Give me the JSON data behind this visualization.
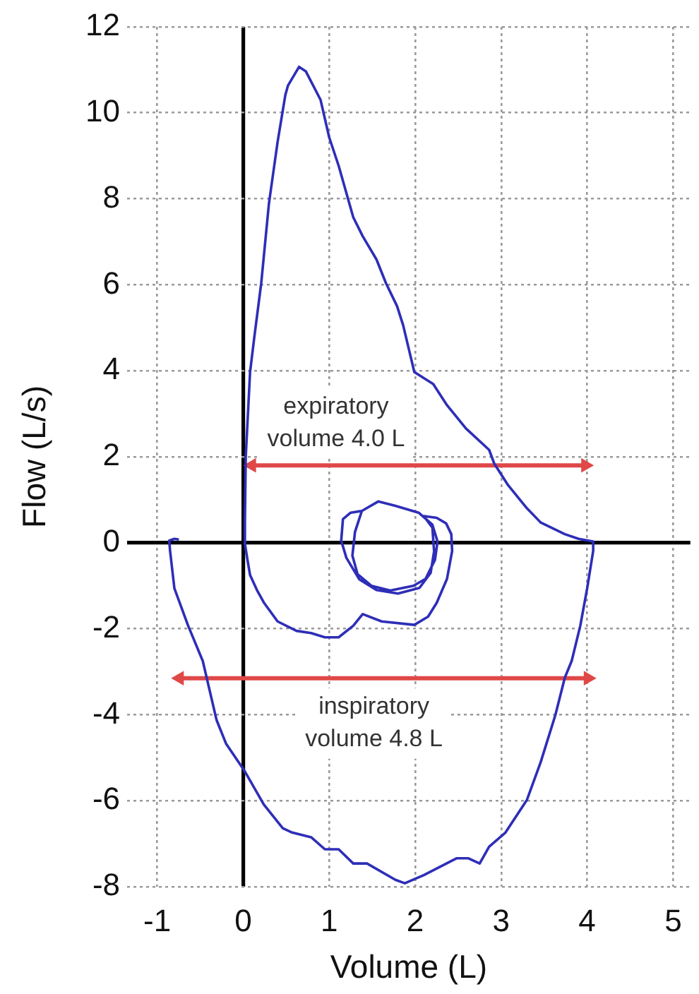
{
  "chart_data": {
    "type": "line",
    "xlabel": "Volume (L)",
    "ylabel": "Flow (L/s)",
    "xlim": [
      -1.35,
      5.2
    ],
    "xticks": [
      -1,
      0,
      1,
      2,
      3,
      4,
      5
    ],
    "ylim": [
      -8,
      12
    ],
    "yticks": [
      -8,
      -6,
      -4,
      -2,
      0,
      2,
      4,
      6,
      8,
      10,
      12
    ],
    "grid": true,
    "marker": "none",
    "series": [
      {
        "color": "#2e2eb8",
        "x": [
          1.38,
          1.57,
          1.77,
          2.04,
          2.2,
          2.26,
          2.23,
          2.12,
          1.98,
          1.71,
          1.49,
          1.33,
          1.27,
          1.3,
          1.38,
          1.25,
          1.16,
          1.14,
          1.2,
          1.35,
          1.55,
          1.8,
          2.05,
          2.18,
          2.22,
          2.2,
          2.1,
          2.25,
          2.36,
          2.42,
          2.43,
          2.37,
          2.25,
          2.15,
          1.99,
          1.61,
          1.39,
          1.28,
          1.11,
          0.95,
          0.79,
          0.62,
          0.4,
          0.24,
          0.16,
          0.08,
          0.05,
          0.02,
          0.02,
          0.03,
          0.08,
          0.13,
          0.21,
          0.3,
          0.4,
          0.49,
          0.52,
          0.65,
          0.73,
          0.9,
          1.0,
          1.11,
          1.28,
          1.39,
          1.55,
          1.66,
          1.79,
          1.86,
          1.99,
          2.21,
          2.37,
          2.59,
          2.86,
          2.92,
          3.08,
          3.3,
          3.46,
          3.74,
          3.9,
          4.07,
          4.07,
          4.0,
          3.92,
          3.82,
          3.74,
          3.63,
          3.46,
          3.3,
          3.05,
          2.86,
          2.75,
          2.62,
          2.48,
          2.1,
          1.88,
          1.77,
          1.44,
          1.28,
          1.11,
          0.95,
          0.79,
          0.57,
          0.46,
          0.24,
          0.02,
          -0.2,
          -0.31,
          -0.47,
          -0.64,
          -0.8,
          -0.85,
          -0.86,
          -0.8,
          -0.76
        ],
        "values": [
          0.74,
          0.96,
          0.86,
          0.7,
          0.42,
          0.03,
          -0.4,
          -0.84,
          -1.0,
          -1.11,
          -1.0,
          -0.73,
          -0.3,
          0.25,
          0.74,
          0.7,
          0.55,
          0.05,
          -0.35,
          -0.85,
          -1.1,
          -1.18,
          -1.05,
          -0.7,
          -0.2,
          0.35,
          0.62,
          0.58,
          0.45,
          0.2,
          -0.19,
          -0.84,
          -1.4,
          -1.72,
          -1.91,
          -1.83,
          -1.66,
          -1.93,
          -2.2,
          -2.2,
          -2.1,
          -2.05,
          -1.83,
          -1.39,
          -1.1,
          -0.75,
          -0.4,
          -0.02,
          0.5,
          2.0,
          3.97,
          4.79,
          6.04,
          7.9,
          9.32,
          10.41,
          10.63,
          11.07,
          10.96,
          10.3,
          9.43,
          8.77,
          7.57,
          7.13,
          6.59,
          6.04,
          5.5,
          5.06,
          3.97,
          3.69,
          3.2,
          2.66,
          2.16,
          1.84,
          1.34,
          0.8,
          0.47,
          0.2,
          0.09,
          0.03,
          -0.19,
          -1.06,
          -1.93,
          -2.75,
          -3.14,
          -4.01,
          -5.1,
          -5.98,
          -6.74,
          -7.07,
          -7.46,
          -7.34,
          -7.34,
          -7.73,
          -7.92,
          -7.84,
          -7.46,
          -7.46,
          -7.13,
          -7.13,
          -6.85,
          -6.74,
          -6.64,
          -6.09,
          -5.32,
          -4.67,
          -4.12,
          -2.75,
          -1.93,
          -1.06,
          -0.19,
          0.05,
          0.09,
          0.08
        ]
      },
      {
        "color": "#e04848",
        "marker": "triangle",
        "x": [
          0.1,
          3.98
        ],
        "values": [
          1.8,
          1.8
        ]
      },
      {
        "color": "#e04848",
        "marker": "triangle",
        "x": [
          -0.74,
          4.01
        ],
        "values": [
          -3.15,
          -3.15
        ]
      }
    ],
    "annotations": [
      {
        "text": "expiratory volume 4.0 L",
        "x": 1.08,
        "y": 1.8
      },
      {
        "text": "inspiratory volume 4.8 L",
        "x": 1.52,
        "y": -3.15
      }
    ]
  }
}
